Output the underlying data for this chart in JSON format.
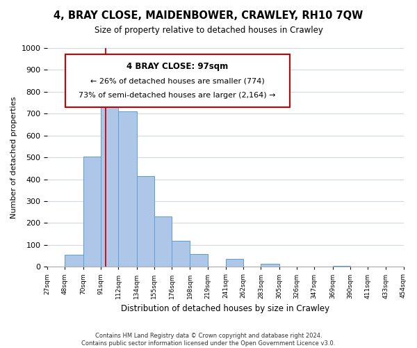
{
  "title": "4, BRAY CLOSE, MAIDENBOWER, CRAWLEY, RH10 7QW",
  "subtitle": "Size of property relative to detached houses in Crawley",
  "xlabel": "Distribution of detached houses by size in Crawley",
  "ylabel": "Number of detached properties",
  "bar_edges": [
    27,
    48,
    70,
    91,
    112,
    134,
    155,
    176,
    198,
    219,
    241,
    262,
    283,
    305,
    326,
    347,
    369,
    390,
    411,
    433,
    454
  ],
  "bar_heights": [
    0,
    55,
    505,
    830,
    710,
    415,
    230,
    118,
    57,
    0,
    35,
    0,
    13,
    0,
    0,
    0,
    3,
    0,
    0,
    0
  ],
  "bar_color": "#aec6e8",
  "bar_edgecolor": "#5a9fd4",
  "ylim": [
    0,
    1000
  ],
  "yticks": [
    0,
    100,
    200,
    300,
    400,
    500,
    600,
    700,
    800,
    900,
    1000
  ],
  "vline_x": 97,
  "vline_color": "#cc0000",
  "annotation_title": "4 BRAY CLOSE: 97sqm",
  "annotation_line1": "← 26% of detached houses are smaller (774)",
  "annotation_line2": "73% of semi-detached houses are larger (2,164) →",
  "annotation_box_color": "#ffffff",
  "annotation_box_edgecolor": "#cc0000",
  "tick_labels": [
    "27sqm",
    "48sqm",
    "70sqm",
    "91sqm",
    "112sqm",
    "134sqm",
    "155sqm",
    "176sqm",
    "198sqm",
    "219sqm",
    "241sqm",
    "262sqm",
    "283sqm",
    "305sqm",
    "326sqm",
    "347sqm",
    "369sqm",
    "390sqm",
    "411sqm",
    "433sqm",
    "454sqm"
  ],
  "footer_line1": "Contains HM Land Registry data © Crown copyright and database right 2024.",
  "footer_line2": "Contains public sector information licensed under the Open Government Licence v3.0.",
  "bg_color": "#ffffff",
  "grid_color": "#d0d8e8"
}
